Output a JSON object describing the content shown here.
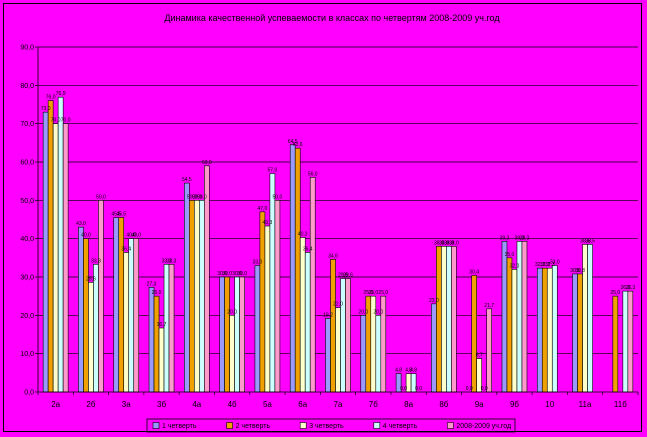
{
  "chart_data": {
    "type": "bar",
    "title": "Динамика качественной успеваемости в классах по четвертям 2008-2009 уч.год",
    "xlabel": "",
    "ylabel": "",
    "ylim": [
      0,
      90
    ],
    "yticks": [
      "0,0",
      "10,0",
      "20,0",
      "30,0",
      "40,0",
      "50,0",
      "60,0",
      "70,0",
      "80,0",
      "90,0"
    ],
    "categories": [
      "2а",
      "2б",
      "3а",
      "3б",
      "4а",
      "4б",
      "5а",
      "6а",
      "7а",
      "7б",
      "8а",
      "8б",
      "9а",
      "9б",
      "10",
      "11а",
      "11б"
    ],
    "grid": true,
    "legend_position": "bottom",
    "series": [
      {
        "name": "1 четверть",
        "color": "#9999ff",
        "values": [
          73,
          43,
          45.5,
          27.3,
          54.5,
          30,
          33,
          64.5,
          19.2,
          20,
          4.8,
          23,
          0,
          39.3,
          32.3,
          30.8,
          null
        ]
      },
      {
        "name": "2 четверть",
        "color": "#f0a000",
        "values": [
          76,
          40,
          45.5,
          25,
          50,
          30,
          47,
          63.6,
          34.6,
          25,
          0,
          38,
          30.4,
          35,
          32.3,
          30.8,
          25
        ]
      },
      {
        "name": "3 четверть",
        "color": "#ffffcc",
        "values": [
          70,
          28.6,
          36.4,
          16.7,
          50,
          20,
          43.3,
          40.3,
          22,
          25,
          4.8,
          38,
          8.7,
          32,
          32.3,
          38.5,
          null
        ]
      },
      {
        "name": "4 четверть",
        "color": "#ccffff",
        "values": [
          76.9,
          33.3,
          40,
          33.3,
          50,
          30,
          57,
          36.4,
          29.6,
          20,
          4.8,
          38,
          0,
          39.3,
          33,
          38.5,
          26.3
        ]
      },
      {
        "name": "2008-2009 уч.год",
        "color": "#ff99cc",
        "values": [
          70,
          50,
          40,
          33.3,
          59,
          30,
          50,
          56,
          29.6,
          25,
          0,
          38,
          21.7,
          39.3,
          null,
          null,
          26.3
        ]
      }
    ],
    "data_labels": [
      [
        "73,0",
        "76,0",
        "70,0",
        "76,9",
        "70,0"
      ],
      [
        "43,0",
        "40,0",
        "28,6",
        "33,3",
        "50,0"
      ],
      [
        "45,5",
        "45,5",
        "36,4",
        "40,0",
        "40,0"
      ],
      [
        "27,3",
        "25,0",
        "16,7",
        "33,3",
        "33,3"
      ],
      [
        "54,5",
        "50,0",
        "50,0",
        "50,0",
        "59,0"
      ],
      [
        "30,0",
        "30,0",
        "20,0",
        "30,0",
        "30,0"
      ],
      [
        "33,0",
        "47,0",
        "43,3",
        "57,0",
        "50,0"
      ],
      [
        "64,5",
        "63,6",
        "40,3",
        "36,4",
        "56,0"
      ],
      [
        "19,2",
        "34,6",
        "22,0",
        "29,6",
        "29,6"
      ],
      [
        "20,0",
        "25,0",
        "25,0",
        "20,0",
        "25,0"
      ],
      [
        "4,8",
        "0,0",
        "4,8",
        "4,8",
        "0,0"
      ],
      [
        "23,0",
        "38,0",
        "38,0",
        "38,0",
        "38,0"
      ],
      [
        "0,0",
        "30,4",
        "8,7",
        "0,0",
        "21,7"
      ],
      [
        "39,3",
        "35,0",
        "32,0",
        "39,3",
        "39,3"
      ],
      [
        "32,3",
        "32,3",
        "32,3",
        "33,0",
        ""
      ],
      [
        "30,8",
        "30,8",
        "38,5",
        "38,5",
        ""
      ],
      [
        "",
        "25,0",
        "",
        "26,3",
        "26,3"
      ]
    ]
  }
}
